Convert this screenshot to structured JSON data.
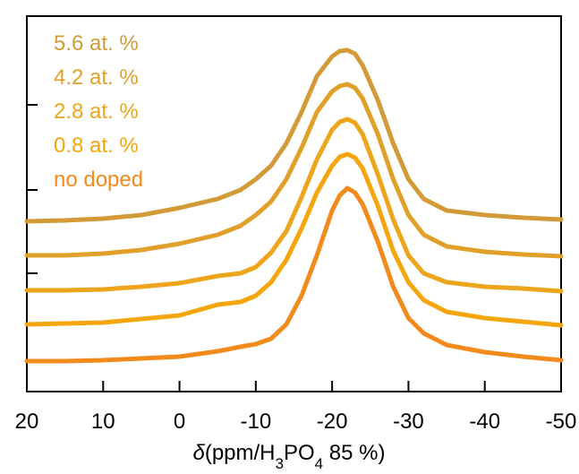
{
  "chart_data": {
    "type": "line",
    "xlabel_parts": [
      "δ",
      "(ppm/H",
      "3",
      "PO",
      "4",
      " 85 %)"
    ],
    "x": [
      20,
      15,
      10,
      5,
      0,
      -5,
      -8,
      -10,
      -12,
      -14,
      -16,
      -18,
      -20,
      -21,
      -22,
      -23,
      -24,
      -26,
      -28,
      -30,
      -32,
      -35,
      -40,
      -45,
      -50
    ],
    "xlim": [
      20,
      -50
    ],
    "xticks": [
      20,
      10,
      0,
      -10,
      -20,
      -30,
      -40,
      -50
    ],
    "ylim": [
      0,
      419
    ],
    "yticks": [
      34,
      132,
      225,
      320
    ],
    "series": [
      {
        "name": "5.6 at. %",
        "color": "#d39b38",
        "values": [
          190,
          191,
          193,
          197,
          205,
          215,
          225,
          237,
          252,
          277,
          312,
          352,
          374,
          380,
          381,
          377,
          364,
          325,
          277,
          237,
          215,
          202,
          197,
          194,
          192
        ]
      },
      {
        "name": "4.2 at. %",
        "color": "#e0a02a",
        "values": [
          152,
          152,
          154,
          158,
          165,
          175,
          185,
          197,
          212,
          237,
          272,
          312,
          335,
          341,
          343,
          339,
          327,
          287,
          237,
          197,
          175,
          162,
          156,
          153,
          151
        ]
      },
      {
        "name": "2.8 at. %",
        "color": "#eda51c",
        "values": [
          113,
          113,
          114,
          117,
          121,
          129,
          132,
          139,
          155,
          179,
          217,
          259,
          292,
          301,
          304,
          300,
          287,
          242,
          192,
          152,
          132,
          122,
          117,
          115,
          112
        ]
      },
      {
        "name": "0.8 at. %",
        "color": "#f5a60c",
        "values": [
          75,
          76,
          77,
          81,
          85,
          97,
          100,
          107,
          122,
          147,
          182,
          222,
          252,
          262,
          265,
          261,
          249,
          207,
          157,
          122,
          102,
          89,
          82,
          78,
          74
        ]
      },
      {
        "name": "no doped",
        "color": "#f28a1c",
        "values": [
          34,
          34,
          35,
          37,
          39,
          45,
          50,
          53,
          59,
          75,
          107,
          152,
          202,
          219,
          227,
          222,
          209,
          167,
          117,
          82,
          65,
          52,
          44,
          39,
          35
        ]
      }
    ]
  }
}
